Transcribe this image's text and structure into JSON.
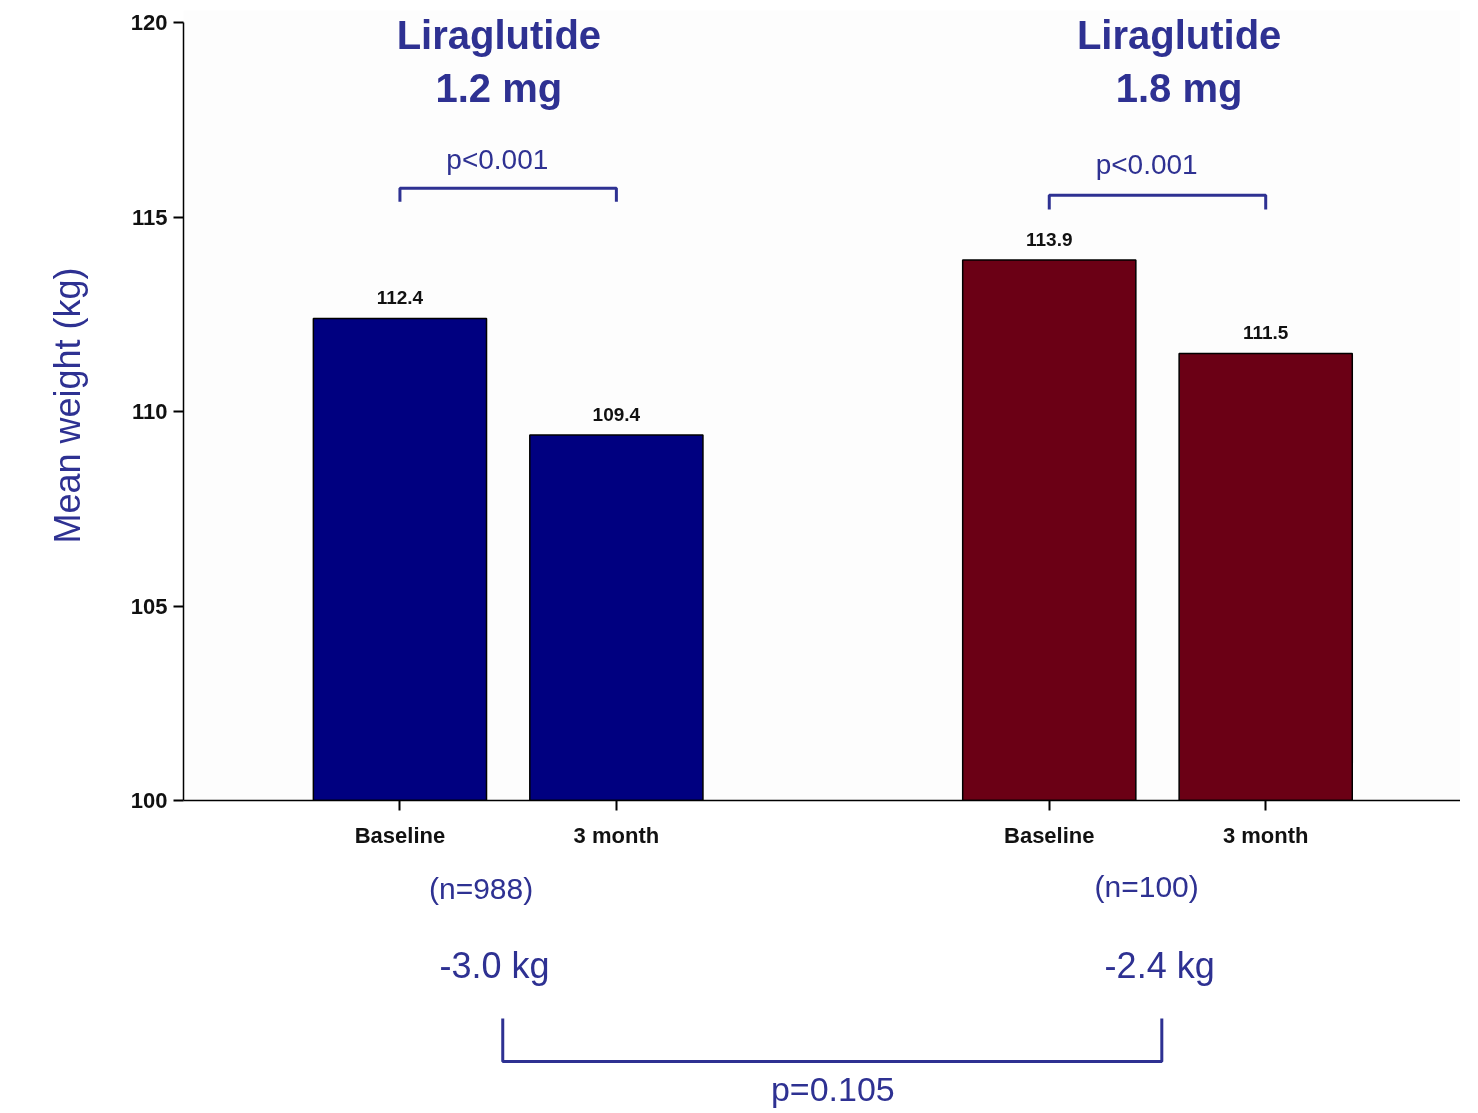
{
  "chart_data": {
    "type": "bar",
    "categories": [
      "Baseline",
      "3 month",
      null,
      "Baseline",
      "3 month"
    ],
    "values": [
      112.4,
      109.4,
      null,
      113.9,
      111.5
    ],
    "colors": [
      "#000080",
      "#000080",
      null,
      "#6b0015",
      "#6b0015"
    ],
    "ylabel": "Mean weight (kg)",
    "ylim": [
      100,
      120
    ],
    "yticks": [
      100,
      105,
      110,
      115,
      120
    ],
    "data_labels": true,
    "grid": false,
    "annotations": [
      "Liraglutide\n1.2 mg",
      "Liraglutide\n1.8 mg",
      "p<0.001",
      "p<0.001",
      "(n=988)",
      "(n=100)",
      "-3.0 kg",
      "-2.4 kg",
      "p=0.105"
    ]
  }
}
